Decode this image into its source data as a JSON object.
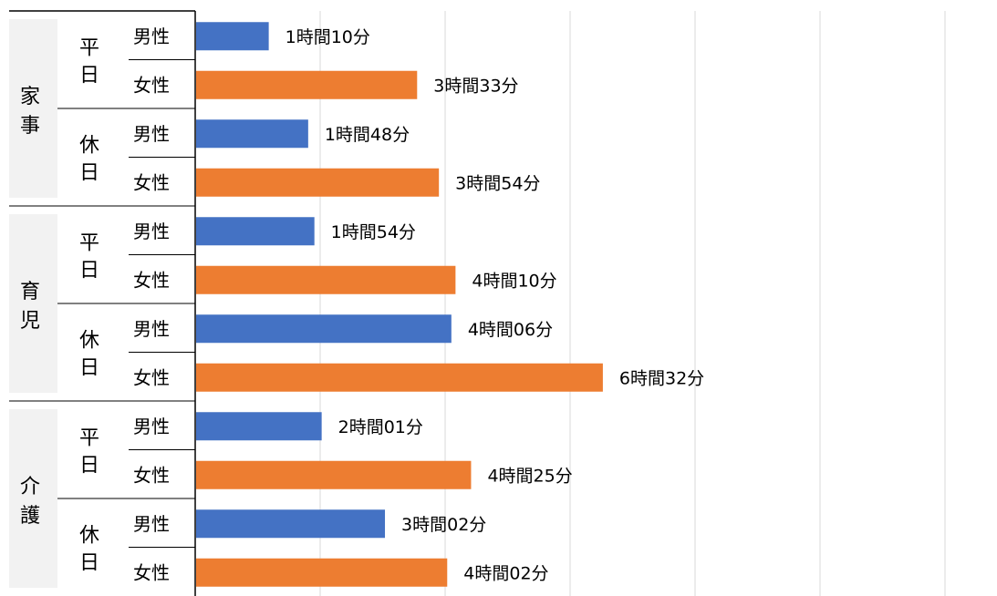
{
  "colors": {
    "male": "#4472C4",
    "female": "#ED7D31",
    "category_bg": "#f2f2f2",
    "grid": "#d9d9d9",
    "axis": "#000000"
  },
  "chart_data": {
    "type": "bar",
    "orientation": "horizontal",
    "unit": "minutes",
    "xlim": [
      0,
      420
    ],
    "grid": true,
    "groups": [
      {
        "category": "家事",
        "subgroups": [
          {
            "day": "平日",
            "rows": [
              {
                "gender": "男性",
                "value": 70,
                "label": "1時間10分"
              },
              {
                "gender": "女性",
                "value": 213,
                "label": "3時間33分"
              }
            ]
          },
          {
            "day": "休日",
            "rows": [
              {
                "gender": "男性",
                "value": 108,
                "label": "1時間48分"
              },
              {
                "gender": "女性",
                "value": 234,
                "label": "3時間54分"
              }
            ]
          }
        ]
      },
      {
        "category": "育児",
        "subgroups": [
          {
            "day": "平日",
            "rows": [
              {
                "gender": "男性",
                "value": 114,
                "label": "1時間54分"
              },
              {
                "gender": "女性",
                "value": 250,
                "label": "4時間10分"
              }
            ]
          },
          {
            "day": "休日",
            "rows": [
              {
                "gender": "男性",
                "value": 246,
                "label": "4時間06分"
              },
              {
                "gender": "女性",
                "value": 392,
                "label": "6時間32分"
              }
            ]
          }
        ]
      },
      {
        "category": "介護",
        "subgroups": [
          {
            "day": "平日",
            "rows": [
              {
                "gender": "男性",
                "value": 121,
                "label": "2時間01分"
              },
              {
                "gender": "女性",
                "value": 265,
                "label": "4時間25分"
              }
            ]
          },
          {
            "day": "休日",
            "rows": [
              {
                "gender": "男性",
                "value": 182,
                "label": "3時間02分"
              },
              {
                "gender": "女性",
                "value": 242,
                "label": "4時間02分"
              }
            ]
          }
        ]
      }
    ]
  }
}
